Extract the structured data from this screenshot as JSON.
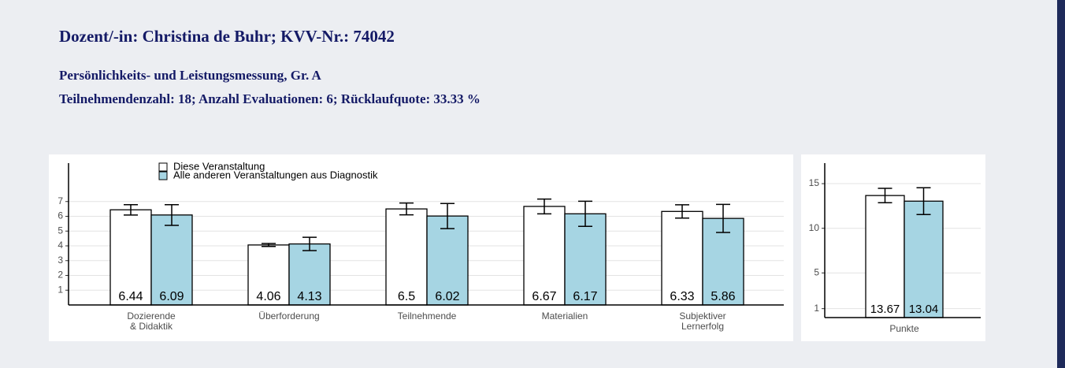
{
  "header": {
    "title": "Dozent/-in: Christina de Buhr; KVV-Nr.: 74042",
    "subtitle": "Persönlichkeits- und Leistungsmessung, Gr. A",
    "stats": "Teilnehmendenzahl: 18; Anzahl Evaluationen: 6; Rücklaufquote: 33.33 %"
  },
  "chart_data": [
    {
      "type": "bar",
      "categories": [
        "Dozierende\n& Didaktik",
        "Überforderung",
        "Teilnehmende",
        "Materialien",
        "Subjektiver\nLernerfolg"
      ],
      "series": [
        {
          "name": "Diese Veranstaltung",
          "color": "#ffffff",
          "values": [
            6.44,
            4.06,
            6.5,
            6.67,
            6.33
          ],
          "errors": [
            0.35,
            0.1,
            0.4,
            0.5,
            0.45
          ]
        },
        {
          "name": "Alle anderen Veranstaltungen aus Diagnostik",
          "color": "#a6d5e3",
          "values": [
            6.09,
            4.13,
            6.02,
            6.17,
            5.86
          ],
          "errors": [
            0.7,
            0.45,
            0.85,
            0.85,
            0.95
          ]
        }
      ],
      "ylim": [
        0,
        9.6
      ],
      "yticks": [
        1,
        2,
        3,
        4,
        5,
        6,
        7
      ],
      "grid": true,
      "legend": "top-left"
    },
    {
      "type": "bar",
      "categories": [
        "Punkte"
      ],
      "series": [
        {
          "name": "Diese Veranstaltung",
          "color": "#ffffff",
          "values": [
            13.67
          ],
          "errors": [
            0.8
          ]
        },
        {
          "name": "Alle anderen Veranstaltungen aus Diagnostik",
          "color": "#a6d5e3",
          "values": [
            13.04
          ],
          "errors": [
            1.5
          ]
        }
      ],
      "ylim": [
        0,
        17.3
      ],
      "yticks": [
        1,
        5,
        10,
        15
      ],
      "grid": true
    }
  ]
}
